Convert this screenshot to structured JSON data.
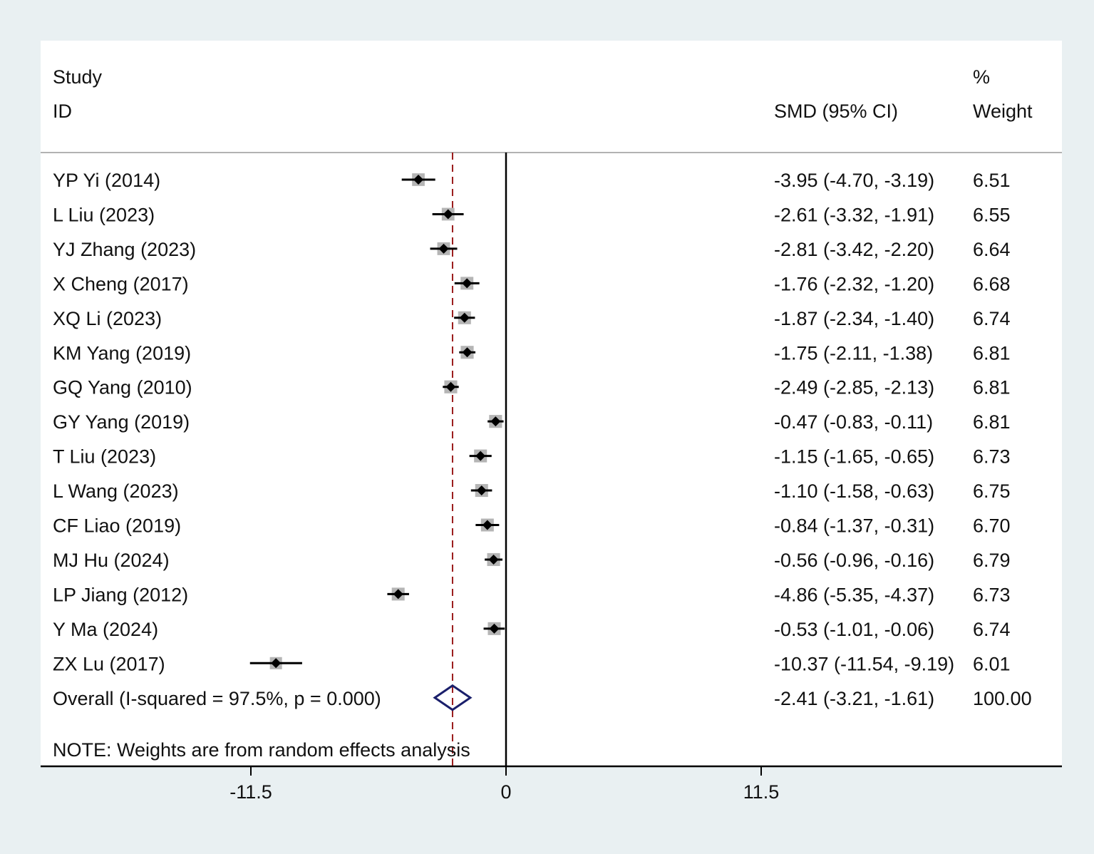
{
  "chart_data": {
    "type": "forest",
    "headers": {
      "study_line1": "Study",
      "study_line2": "ID",
      "effect": "SMD (95% CI)",
      "weight_line1": "%",
      "weight_line2": "Weight"
    },
    "studies": [
      {
        "id": "YP Yi (2014)",
        "smd": -3.95,
        "lo": -4.7,
        "hi": -3.19,
        "weight": 6.51,
        "ci_text": "-3.95 (-4.70, -3.19)",
        "weight_text": "6.51"
      },
      {
        "id": "L Liu (2023)",
        "smd": -2.61,
        "lo": -3.32,
        "hi": -1.91,
        "weight": 6.55,
        "ci_text": "-2.61 (-3.32, -1.91)",
        "weight_text": "6.55"
      },
      {
        "id": "YJ Zhang (2023)",
        "smd": -2.81,
        "lo": -3.42,
        "hi": -2.2,
        "weight": 6.64,
        "ci_text": "-2.81 (-3.42, -2.20)",
        "weight_text": "6.64"
      },
      {
        "id": "X Cheng (2017)",
        "smd": -1.76,
        "lo": -2.32,
        "hi": -1.2,
        "weight": 6.68,
        "ci_text": "-1.76 (-2.32, -1.20)",
        "weight_text": "6.68"
      },
      {
        "id": "XQ Li (2023)",
        "smd": -1.87,
        "lo": -2.34,
        "hi": -1.4,
        "weight": 6.74,
        "ci_text": "-1.87 (-2.34, -1.40)",
        "weight_text": "6.74"
      },
      {
        "id": "KM Yang (2019)",
        "smd": -1.75,
        "lo": -2.11,
        "hi": -1.38,
        "weight": 6.81,
        "ci_text": "-1.75 (-2.11, -1.38)",
        "weight_text": "6.81"
      },
      {
        "id": "GQ Yang (2010)",
        "smd": -2.49,
        "lo": -2.85,
        "hi": -2.13,
        "weight": 6.81,
        "ci_text": "-2.49 (-2.85, -2.13)",
        "weight_text": "6.81"
      },
      {
        "id": "GY Yang (2019)",
        "smd": -0.47,
        "lo": -0.83,
        "hi": -0.11,
        "weight": 6.81,
        "ci_text": "-0.47 (-0.83, -0.11)",
        "weight_text": "6.81"
      },
      {
        "id": "T Liu (2023)",
        "smd": -1.15,
        "lo": -1.65,
        "hi": -0.65,
        "weight": 6.73,
        "ci_text": "-1.15 (-1.65, -0.65)",
        "weight_text": "6.73"
      },
      {
        "id": "L Wang (2023)",
        "smd": -1.1,
        "lo": -1.58,
        "hi": -0.63,
        "weight": 6.75,
        "ci_text": "-1.10 (-1.58, -0.63)",
        "weight_text": "6.75"
      },
      {
        "id": "CF Liao (2019)",
        "smd": -0.84,
        "lo": -1.37,
        "hi": -0.31,
        "weight": 6.7,
        "ci_text": "-0.84 (-1.37, -0.31)",
        "weight_text": "6.70"
      },
      {
        "id": "MJ Hu (2024)",
        "smd": -0.56,
        "lo": -0.96,
        "hi": -0.16,
        "weight": 6.79,
        "ci_text": "-0.56 (-0.96, -0.16)",
        "weight_text": "6.79"
      },
      {
        "id": "LP Jiang (2012)",
        "smd": -4.86,
        "lo": -5.35,
        "hi": -4.37,
        "weight": 6.73,
        "ci_text": "-4.86 (-5.35, -4.37)",
        "weight_text": "6.73"
      },
      {
        "id": "Y Ma (2024)",
        "smd": -0.53,
        "lo": -1.01,
        "hi": -0.06,
        "weight": 6.74,
        "ci_text": "-0.53 (-1.01, -0.06)",
        "weight_text": "6.74"
      },
      {
        "id": "ZX Lu (2017)",
        "smd": -10.37,
        "lo": -11.54,
        "hi": -9.19,
        "weight": 6.01,
        "ci_text": "-10.37 (-11.54, -9.19)",
        "weight_text": "6.01"
      }
    ],
    "overall": {
      "label": "Overall  (I-squared = 97.5%, p = 0.000)",
      "smd": -2.41,
      "lo": -3.21,
      "hi": -1.61,
      "weight": 100.0,
      "ci_text": "-2.41 (-3.21, -1.61)",
      "weight_text": "100.00"
    },
    "note": "NOTE: Weights are from random effects analysis",
    "x_ticks": [
      {
        "value": -11.5,
        "label": "-11.5"
      },
      {
        "value": 0,
        "label": "0"
      },
      {
        "value": 11.5,
        "label": "11.5"
      }
    ],
    "xlim": [
      -20.9,
      25.1
    ],
    "colors": {
      "marker": "#000000",
      "weight_box": "#b5b5b5",
      "overall_diamond": "#1a1f6b",
      "overall_line": "#9b1c1c",
      "background": "#e9f0f2"
    }
  }
}
